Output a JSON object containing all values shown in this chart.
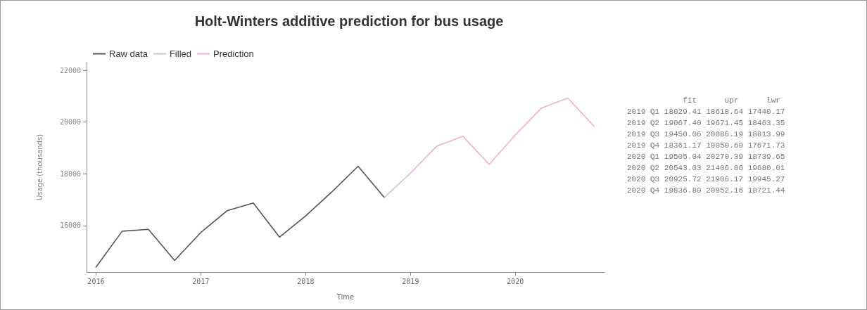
{
  "chart_data": {
    "type": "line",
    "title": "Holt-Winters additive prediction for bus usage",
    "xlabel": "Time",
    "ylabel": "Usage (thousands)",
    "xlim": [
      2015.91,
      2020.85
    ],
    "xticks": [
      2016,
      2017,
      2018,
      2019,
      2020
    ],
    "ylim": [
      14200,
      22300
    ],
    "yticks": [
      16000,
      18000,
      20000,
      22000
    ],
    "series": [
      {
        "name": "Raw data",
        "color": "#555555",
        "x": [
          2016,
          2016.25,
          2016.5,
          2016.75,
          2017,
          2017.25,
          2017.5,
          2017.75,
          2018,
          2018.25,
          2018.5,
          2018.75
        ],
        "values": [
          14390,
          15780,
          15850,
          14650,
          15730,
          16570,
          16870,
          15550,
          16370,
          17300,
          18290,
          17080
        ]
      },
      {
        "name": "Filled",
        "color": "#c8c8c8",
        "x": [
          2018.75,
          2019
        ],
        "values": [
          17080,
          18029.41
        ]
      },
      {
        "name": "Prediction",
        "color": "#f0b4bd",
        "x": [
          2019,
          2019.25,
          2019.5,
          2019.75,
          2020,
          2020.25,
          2020.5,
          2020.75
        ],
        "values": [
          18029.41,
          19067.4,
          19450.06,
          18361.17,
          19505.04,
          20543.03,
          20925.72,
          19836.8
        ]
      }
    ],
    "annotations": [
      "            fit      upr      lwr",
      "2019 Q1 18029.41 18618.64 17440.17",
      "2019 Q2 19067.40 19671.45 18463.35",
      "2019 Q3 19450.06 20086.19 18813.99",
      "2019 Q4 18361.17 19050.60 17671.73",
      "2020 Q1 19505.04 20270.39 18739.65",
      "2020 Q2 20543.03 21406.06 19680.01",
      "2020 Q3 20925.72 21906.17 19945.27",
      "2020 Q4 19836.80 20952.16 18721.44"
    ],
    "legend": "top left",
    "grid": false,
    "marker": "none",
    "line_style": "solid"
  }
}
